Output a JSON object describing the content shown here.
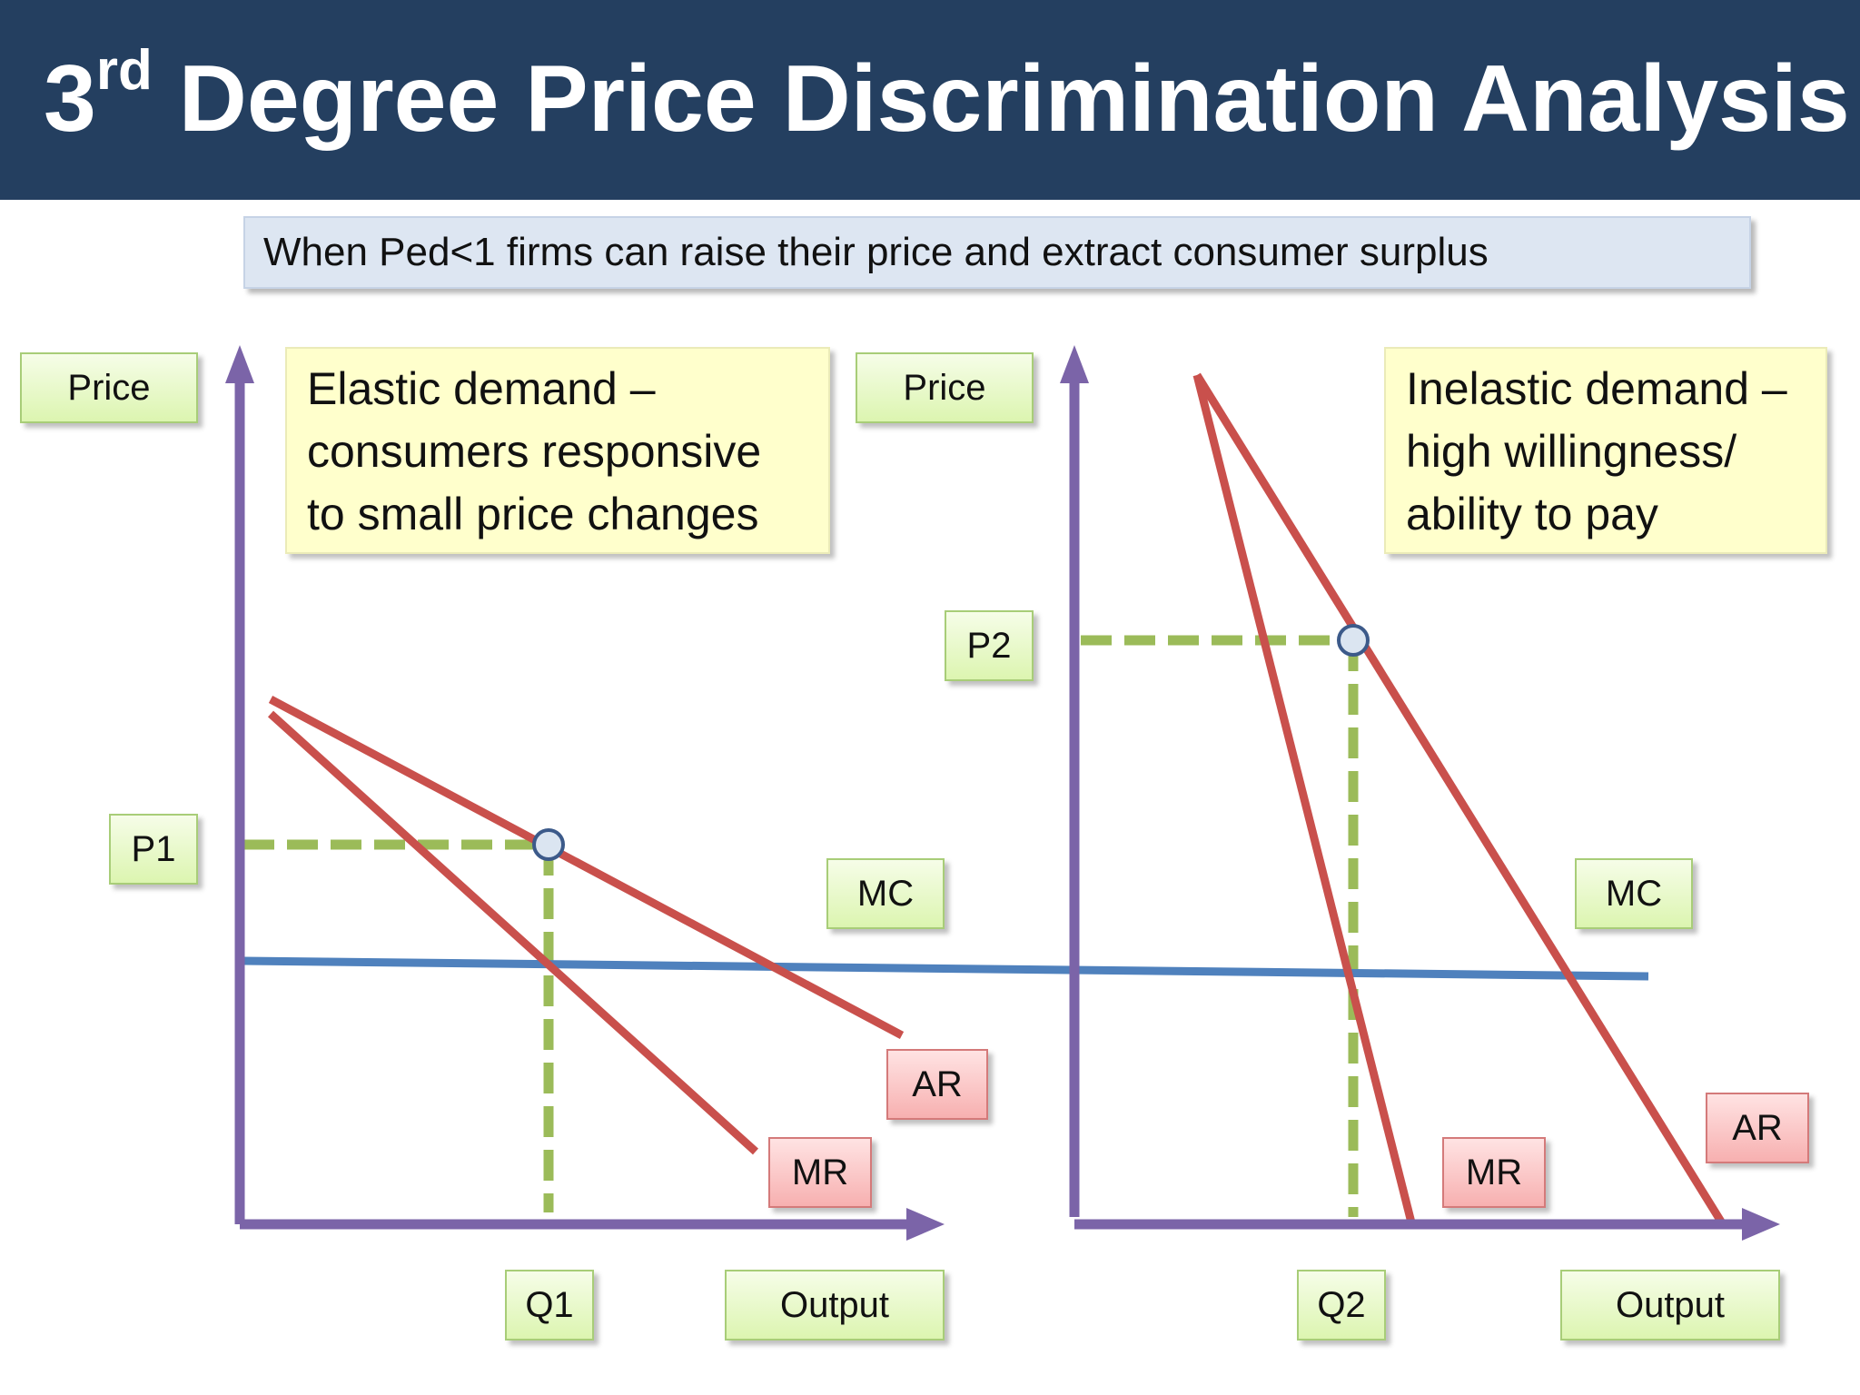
{
  "header": {
    "title_number": "3",
    "title_superscript": "rd",
    "title_rest": " Degree Price Discrimination Analysis"
  },
  "subtitle": "When Ped<1 firms can raise their price and extract consumer surplus",
  "left_panel": {
    "y_axis_label": "Price",
    "x_axis_label": "Output",
    "price_label": "P1",
    "quantity_label": "Q1",
    "mc_label": "MC",
    "ar_label": "AR",
    "mr_label": "MR",
    "note_lines": [
      "Elastic demand –",
      "consumers responsive",
      "to small price changes"
    ]
  },
  "right_panel": {
    "y_axis_label": "Price",
    "x_axis_label": "Output",
    "price_label": "P2",
    "quantity_label": "Q2",
    "mc_label": "MC",
    "ar_label": "AR",
    "mr_label": "MR",
    "note_lines": [
      "Inelastic demand –",
      "high willingness/",
      "ability to pay"
    ]
  },
  "colors": {
    "header_background": "#243f60",
    "axis": "#7b64a8",
    "demand_and_mr_curves": "#c9504c",
    "mc_line": "#4f81bd",
    "dashed_guides": "#9bbb59",
    "equilibrium_marker_fill": "#dbe5f1",
    "equilibrium_marker_stroke": "#3c5a8a"
  }
}
